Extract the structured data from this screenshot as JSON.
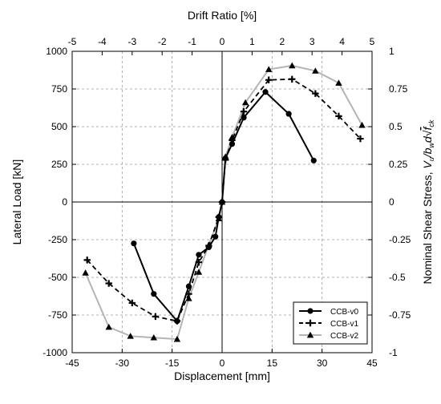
{
  "chart_data": {
    "type": "line",
    "xlabel": "Displacement [mm]",
    "x2label": "Drift Ratio [%]",
    "ylabel": "Lateral Load [kN]",
    "y2label": "Nominal Shear Stress, V_u/b_w d √f_ck",
    "y2label_parts": {
      "prefix": "Nominal Shear Stress, ",
      "v": "V",
      "u": "u",
      "b": "/b",
      "w": "w",
      "d": "d",
      "f": "f",
      "ck": "ck"
    },
    "xlim": [
      -45,
      45
    ],
    "ylim": [
      -1000,
      1000
    ],
    "x2lim": [
      -5,
      5
    ],
    "y2lim": [
      -1,
      1
    ],
    "xticks": [
      -45,
      -30,
      -15,
      0,
      15,
      30,
      45
    ],
    "yticks": [
      -1000,
      -750,
      -500,
      -250,
      0,
      250,
      500,
      750,
      1000
    ],
    "x2ticks": [
      -5,
      -4,
      -3,
      -2,
      -1,
      0,
      1,
      2,
      3,
      4,
      5
    ],
    "y2ticks": [
      -1,
      -0.75,
      -0.5,
      -0.25,
      0,
      0.25,
      0.5,
      0.75,
      1
    ],
    "grid": true,
    "legend_position": "bottom-right",
    "series": [
      {
        "name": "CCB-v0",
        "color": "#000000",
        "line": "solid",
        "marker": "circle",
        "x": [
          -26.5,
          -20.5,
          -13.5,
          -10,
          -7,
          -4,
          -2,
          -1,
          0,
          1,
          3,
          6.5,
          13,
          20,
          27.5
        ],
        "y": [
          -275,
          -610,
          -790,
          -560,
          -350,
          -300,
          -230,
          -100,
          0,
          290,
          385,
          560,
          730,
          585,
          275
        ]
      },
      {
        "name": "CCB-v1",
        "color": "#000000",
        "line": "dashed",
        "marker": "plus",
        "x": [
          -40.5,
          -34,
          -27,
          -20,
          -13.5,
          -10,
          -7,
          -4,
          -1,
          0,
          1,
          3,
          6.5,
          14,
          21,
          28,
          35,
          41.5
        ],
        "y": [
          -385,
          -540,
          -670,
          -760,
          -790,
          -610,
          -400,
          -290,
          -100,
          0,
          280,
          410,
          600,
          810,
          815,
          720,
          570,
          420
        ]
      },
      {
        "name": "CCB-v2",
        "color": "#b4b4b4",
        "line": "solid",
        "marker": "triangle",
        "x": [
          -41,
          -34,
          -27.5,
          -20.5,
          -13.5,
          -10,
          -7,
          -4,
          -1,
          0,
          1,
          3,
          7,
          14,
          21,
          28,
          35,
          42
        ],
        "y": [
          -470,
          -830,
          -890,
          -900,
          -910,
          -640,
          -465,
          -285,
          -110,
          0,
          300,
          430,
          660,
          880,
          905,
          870,
          790,
          510
        ]
      }
    ]
  }
}
